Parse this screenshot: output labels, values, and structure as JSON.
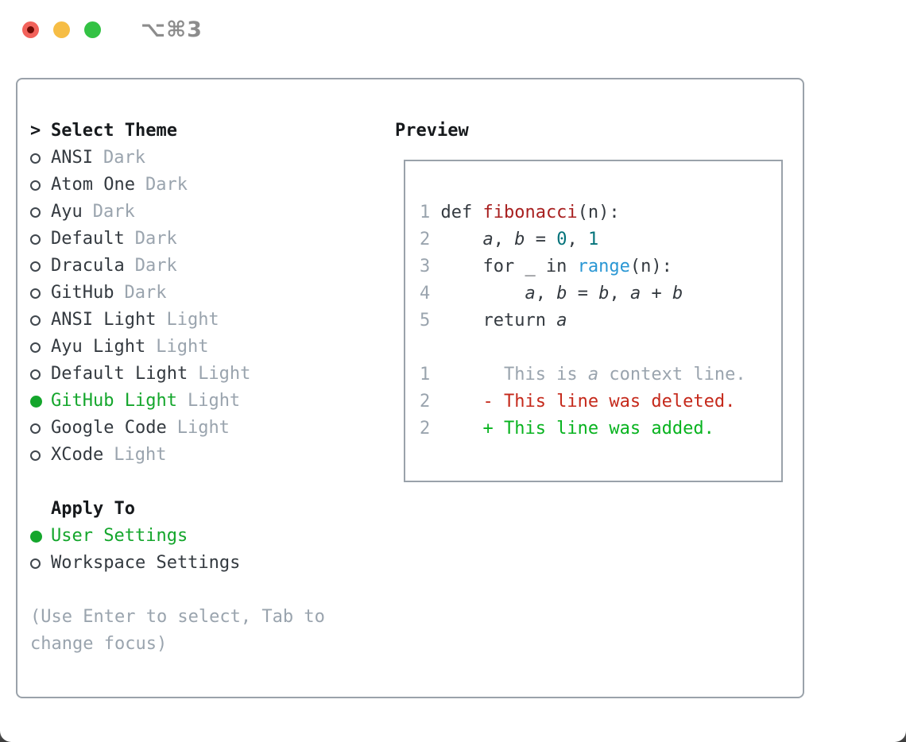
{
  "window": {
    "title": "⌥⌘3"
  },
  "colors": {
    "selected_green": "#14a62c",
    "added_green": "#08b31f",
    "deleted_red": "#c5291b",
    "function_red": "#a81f1f",
    "builtin_blue": "#2a97d4",
    "number_teal": "#04737b",
    "muted_gray": "#9aa4ae",
    "border_gray": "#9aa2aa",
    "traffic_red": "#f2625b",
    "traffic_yellow": "#f6bd45",
    "traffic_green": "#33c244"
  },
  "theme_panel": {
    "header_prefix": ">",
    "header": "Select Theme",
    "themes": [
      {
        "name": "ANSI",
        "variant": "Dark",
        "selected": false
      },
      {
        "name": "Atom One",
        "variant": "Dark",
        "selected": false
      },
      {
        "name": "Ayu",
        "variant": "Dark",
        "selected": false
      },
      {
        "name": "Default",
        "variant": "Dark",
        "selected": false
      },
      {
        "name": "Dracula",
        "variant": "Dark",
        "selected": false
      },
      {
        "name": "GitHub",
        "variant": "Dark",
        "selected": false
      },
      {
        "name": "ANSI Light",
        "variant": "Light",
        "selected": false
      },
      {
        "name": "Ayu Light",
        "variant": "Light",
        "selected": false
      },
      {
        "name": "Default Light",
        "variant": "Light",
        "selected": false
      },
      {
        "name": "GitHub Light",
        "variant": "Light",
        "selected": true
      },
      {
        "name": "Google Code",
        "variant": "Light",
        "selected": false
      },
      {
        "name": "XCode",
        "variant": "Light",
        "selected": false
      }
    ],
    "apply_to": {
      "header": "Apply To",
      "options": [
        {
          "name": "User Settings",
          "selected": true
        },
        {
          "name": "Workspace Settings",
          "selected": false
        }
      ]
    },
    "help_text": "(Use Enter to select, Tab to change focus)"
  },
  "preview": {
    "header": "Preview",
    "code": [
      {
        "num": "1",
        "t": {
          "a": "def ",
          "b": "fibonacci",
          "c": "(n):"
        }
      },
      {
        "num": "2",
        "t": {
          "a": "    ",
          "b": "a",
          "c": ", ",
          "d": "b",
          "e": " = ",
          "f": "0",
          "g": ", ",
          "h": "1"
        }
      },
      {
        "num": "3",
        "t": {
          "a": "    for _ in ",
          "b": "range",
          "c": "(n):"
        }
      },
      {
        "num": "4",
        "t": {
          "a": "        ",
          "b": "a",
          "c": ", ",
          "d": "b",
          "e": " = ",
          "f": "b",
          "g": ", ",
          "h": "a",
          "i": " + ",
          "j": "b"
        }
      },
      {
        "num": "5",
        "t": {
          "a": "    return ",
          "b": "a"
        }
      }
    ],
    "diff": [
      {
        "num": "1",
        "t": {
          "a": "      This is ",
          "b": "a",
          "c": " context line."
        }
      },
      {
        "num": "2",
        "t": {
          "a": "    ",
          "b": "- This line was deleted."
        }
      },
      {
        "num": "2",
        "t": {
          "a": "    ",
          "b": "+ This line was added."
        }
      }
    ]
  }
}
